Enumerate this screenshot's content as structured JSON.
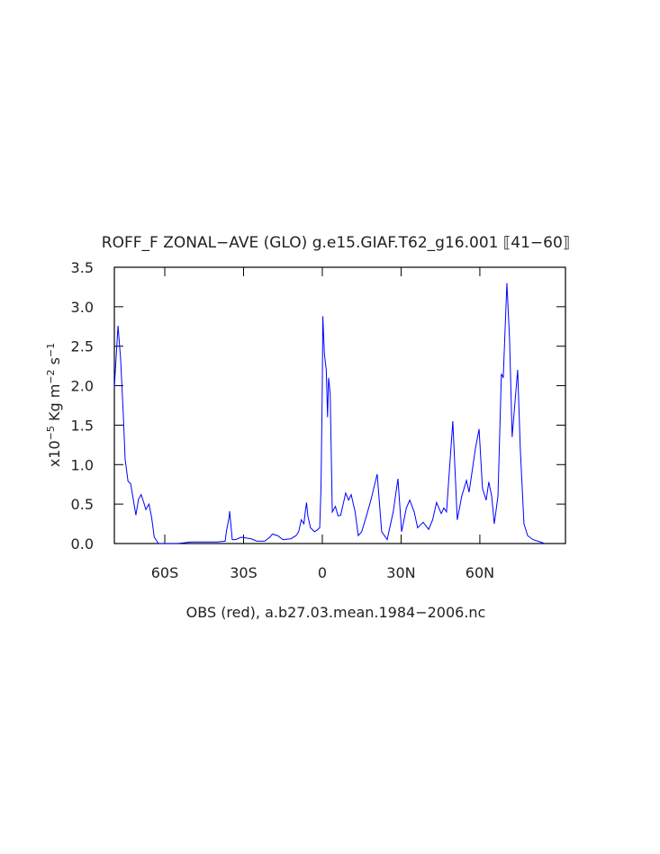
{
  "chart_data": {
    "type": "line",
    "title": "ROFF_F ZONAL−AVE (GLO) g.e15.GIAF.T62_g16.001 ⟦41−60⟧",
    "xlabel": "OBS (red), a.b27.03.mean.1984−2006.nc",
    "ylabel_parts": [
      {
        "text": "x10"
      },
      {
        "text": "−5",
        "sup": true
      },
      {
        "text": " Kg m"
      },
      {
        "text": "−2",
        "sup": true
      },
      {
        "text": " s"
      },
      {
        "text": "−1",
        "sup": true
      }
    ],
    "xlim": [
      -79.2,
      92.6
    ],
    "xticks": [
      {
        "value": -60,
        "label": "60S"
      },
      {
        "value": -30,
        "label": "30S"
      },
      0,
      {
        "value": 30,
        "label": "30N"
      },
      {
        "value": 60,
        "label": "60N"
      }
    ],
    "ylim": [
      0,
      3.5
    ],
    "yticks": [
      {
        "value": 0,
        "label": "0.0"
      },
      0.5,
      {
        "value": 1,
        "label": "1.0"
      },
      1.5,
      {
        "value": 2,
        "label": "2.0"
      },
      2.5,
      {
        "value": 3,
        "label": "3.0"
      },
      3.5
    ],
    "series": [
      {
        "color": "#0000ff",
        "x": [
          -79.2,
          -77.8,
          -76.8,
          -75.8,
          -75.1,
          -74,
          -73,
          -72,
          -71,
          -70,
          -69,
          -68,
          -67.2,
          -66,
          -65,
          -64,
          -62.4,
          -55,
          -50,
          -45,
          -40,
          -37,
          -36.5,
          -35.5,
          -35.3,
          -34.3,
          -33,
          -30.9,
          -27,
          -25,
          -22,
          -20,
          -19,
          -17,
          -15,
          -12,
          -10,
          -9,
          -8,
          -7,
          -6.5,
          -6,
          -5.5,
          -4.5,
          -3,
          -2,
          -1,
          -0.5,
          0,
          0.2,
          0.8,
          1.5,
          2,
          2.4,
          3,
          3.8,
          5,
          6,
          7,
          8.9,
          10,
          11,
          12.5,
          13.7,
          15,
          16.8,
          18.5,
          20.9,
          22.6,
          24.7,
          27,
          28.8,
          30.2,
          32,
          33.3,
          35,
          36.3,
          38.4,
          40.5,
          42,
          43.5,
          45.3,
          46.3,
          47.3,
          49.7,
          51.4,
          53.1,
          54.9,
          55.9,
          58.3,
          59.7,
          61,
          62.4,
          63.4,
          64.5,
          65.5,
          66.9,
          68.2,
          68.9,
          70.3,
          71.3,
          72.3,
          73.4,
          74.4,
          75.4,
          76.8,
          78.2,
          80.2,
          83,
          84.7
        ],
        "values": [
          1.98,
          2.76,
          2.33,
          1.64,
          1.07,
          0.79,
          0.76,
          0.56,
          0.36,
          0.56,
          0.62,
          0.52,
          0.43,
          0.5,
          0.33,
          0.08,
          0,
          0,
          0.02,
          0.02,
          0.02,
          0.03,
          0.16,
          0.33,
          0.41,
          0.05,
          0.05,
          0.08,
          0.06,
          0.03,
          0.03,
          0.08,
          0.12,
          0.1,
          0.05,
          0.06,
          0.1,
          0.15,
          0.3,
          0.25,
          0.4,
          0.52,
          0.35,
          0.2,
          0.15,
          0.17,
          0.2,
          0.7,
          2.0,
          2.88,
          2.4,
          2.2,
          1.6,
          2.1,
          1.9,
          0.4,
          0.47,
          0.35,
          0.36,
          0.64,
          0.55,
          0.62,
          0.4,
          0.1,
          0.15,
          0.35,
          0.55,
          0.88,
          0.15,
          0.05,
          0.4,
          0.82,
          0.15,
          0.45,
          0.55,
          0.4,
          0.2,
          0.27,
          0.18,
          0.3,
          0.52,
          0.38,
          0.45,
          0.4,
          1.55,
          0.3,
          0.6,
          0.8,
          0.65,
          1.2,
          1.45,
          0.7,
          0.55,
          0.78,
          0.6,
          0.25,
          0.6,
          2.15,
          2.1,
          3.3,
          2.6,
          1.35,
          1.8,
          2.2,
          1.2,
          0.25,
          0.1,
          0.05,
          0.02,
          0
        ]
      }
    ],
    "mirror_ticks": true
  }
}
